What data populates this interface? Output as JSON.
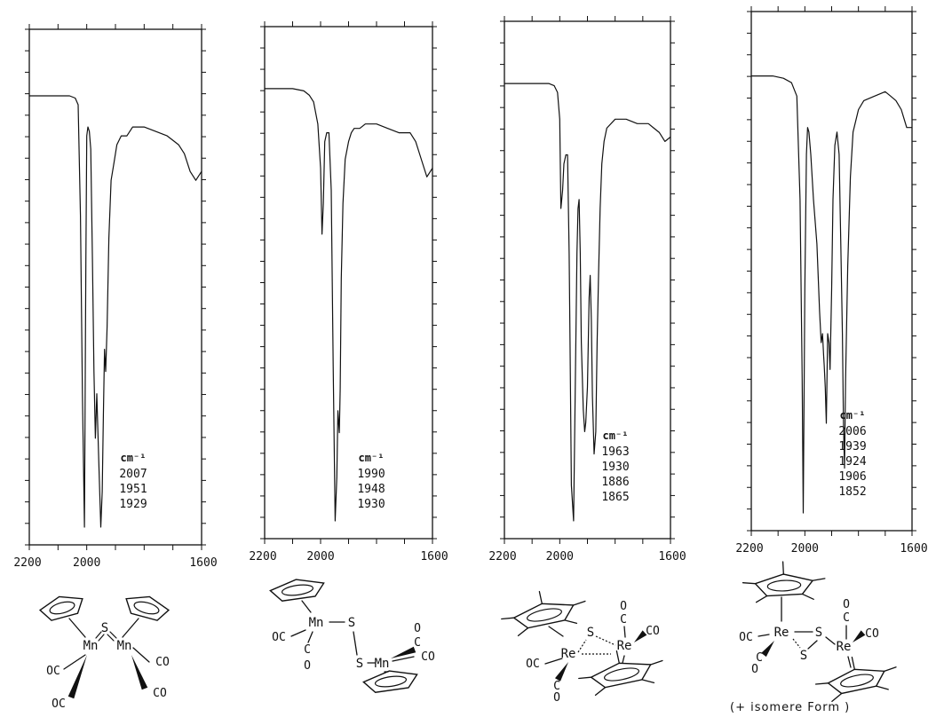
{
  "chart_data": [
    {
      "type": "line",
      "xlim": [
        2200,
        1600
      ],
      "unit_label": "cm⁻¹",
      "bands": [
        "2007",
        "1951",
        "1929"
      ],
      "spectrum": {
        "x": [
          2200,
          2100,
          2060,
          2040,
          2030,
          2022,
          2015,
          2008,
          2003,
          2000,
          1996,
          1991,
          1986,
          1980,
          1975,
          1970,
          1965,
          1958,
          1951,
          1946,
          1942,
          1938,
          1934,
          1929,
          1923,
          1915,
          1905,
          1895,
          1880,
          1860,
          1840,
          1800,
          1760,
          1720,
          1700,
          1680,
          1660,
          1640,
          1620,
          1600
        ],
        "y": [
          97,
          97,
          97,
          96.5,
          95,
          70,
          30,
          0,
          60,
          88,
          90,
          89,
          85,
          60,
          35,
          20,
          30,
          15,
          0,
          8,
          25,
          40,
          35,
          45,
          65,
          78,
          82,
          86,
          88,
          88,
          90,
          90,
          89,
          88,
          87,
          86,
          84,
          80,
          78,
          80
        ]
      }
    },
    {
      "type": "line",
      "xlim": [
        2200,
        1600
      ],
      "unit_label": "cm⁻¹",
      "bands": [
        "1990",
        "1948",
        "1930"
      ],
      "spectrum": {
        "x": [
          2200,
          2100,
          2060,
          2040,
          2025,
          2010,
          2000,
          1995,
          1990,
          1985,
          1978,
          1970,
          1962,
          1955,
          1948,
          1942,
          1938,
          1933,
          1930,
          1926,
          1920,
          1912,
          1900,
          1890,
          1880,
          1860,
          1840,
          1800,
          1760,
          1720,
          1680,
          1660,
          1640,
          1620,
          1600
        ],
        "y": [
          98,
          98,
          97.5,
          96.5,
          95,
          90,
          80,
          65,
          72,
          86,
          88,
          88,
          75,
          35,
          0,
          10,
          25,
          20,
          30,
          55,
          72,
          82,
          86,
          88,
          89,
          89,
          90,
          90,
          89,
          88,
          88,
          86,
          82,
          78,
          80
        ]
      }
    },
    {
      "type": "line",
      "xlim": [
        2200,
        1600
      ],
      "unit_label": "cm⁻¹",
      "bands": [
        "1963",
        "1930",
        "1886",
        "1865"
      ],
      "spectrum": {
        "x": [
          2200,
          2100,
          2040,
          2020,
          2008,
          2000,
          1996,
          1990,
          1985,
          1978,
          1972,
          1966,
          1963,
          1958,
          1950,
          1944,
          1938,
          1934,
          1930,
          1926,
          1922,
          1915,
          1910,
          1906,
          1900,
          1894,
          1890,
          1886,
          1882,
          1876,
          1870,
          1865,
          1860,
          1854,
          1848,
          1840,
          1830,
          1800,
          1760,
          1720,
          1680,
          1660,
          1640,
          1620,
          1600
        ],
        "y": [
          98,
          98,
          98,
          97.5,
          96,
          90,
          70,
          74,
          80,
          82,
          82,
          60,
          40,
          8,
          0,
          30,
          60,
          70,
          72,
          60,
          40,
          25,
          20,
          22,
          30,
          50,
          55,
          45,
          28,
          15,
          20,
          40,
          55,
          70,
          80,
          85,
          88,
          90,
          90,
          89,
          89,
          88,
          87,
          85,
          86
        ]
      }
    },
    {
      "type": "line",
      "xlim": [
        2200,
        1600
      ],
      "unit_label": "cm⁻¹",
      "bands": [
        "2006",
        "1939",
        "1924",
        "1906",
        "1852"
      ],
      "spectrum": {
        "x": [
          2200,
          2120,
          2080,
          2050,
          2030,
          2018,
          2010,
          2006,
          2000,
          1994,
          1990,
          1985,
          1978,
          1968,
          1955,
          1945,
          1939,
          1934,
          1930,
          1928,
          1924,
          1920,
          1915,
          1910,
          1906,
          1900,
          1895,
          1888,
          1880,
          1872,
          1866,
          1860,
          1856,
          1852,
          1848,
          1840,
          1830,
          1820,
          1800,
          1780,
          1740,
          1700,
          1680,
          1660,
          1640,
          1620,
          1600
        ],
        "y": [
          97.5,
          97.5,
          97,
          96,
          93,
          70,
          30,
          0,
          50,
          80,
          86,
          85,
          80,
          70,
          60,
          45,
          38,
          40,
          35,
          33,
          28,
          20,
          40,
          38,
          32,
          50,
          70,
          82,
          85,
          80,
          60,
          40,
          20,
          10,
          30,
          55,
          75,
          85,
          90,
          92,
          93,
          94,
          93,
          92,
          90,
          86,
          86
        ]
      }
    }
  ],
  "axis_labels": [
    {
      "left": "2200",
      "mid": "2000",
      "right": "1600"
    },
    {
      "left": "2200",
      "mid": "2000",
      "right": "1600"
    },
    {
      "left": "2200",
      "mid": "2000",
      "right": "1600"
    },
    {
      "left": "2200",
      "mid": "2000",
      "right": "1600"
    }
  ],
  "structures": [
    {
      "name": "Mn=S=Mn bridged complex",
      "icon": "cp-mn-s-mn-structure",
      "labels": {
        "m1": "Mn",
        "s": "S",
        "m2": "Mn",
        "co1": "OC",
        "co2": "OC",
        "co3": "CO",
        "co4": "CO"
      }
    },
    {
      "name": "Mn-S-S-Mn disulfide complex",
      "icon": "cp-mn-ss-mn-structure",
      "labels": {
        "m1": "Mn",
        "s1": "S",
        "s2": "S",
        "m2": "Mn",
        "co1": "OC",
        "co2": "C",
        "co2o": "O",
        "co3": "CO",
        "co4": "C",
        "co4o": "O"
      }
    },
    {
      "name": "Re-S-Re complex",
      "icon": "cp-star-re-s-re-structure",
      "labels": {
        "m1": "Re",
        "s": "S",
        "m2": "Re",
        "co1": "OC",
        "co2": "C",
        "co2o": "O",
        "co3": "CO",
        "co4": "C",
        "co4o": "O"
      }
    },
    {
      "name": "Re-S2-Re complex",
      "icon": "cp-star-re-s2-re-structure",
      "labels": {
        "m1": "Re",
        "s1": "S",
        "s2": "S",
        "m2": "Re",
        "co1": "OC",
        "co2": "C",
        "co2o": "O",
        "co3": "CO",
        "co4": "C",
        "co4o": "O"
      }
    }
  ],
  "footnote": "(+ isomere Form )"
}
